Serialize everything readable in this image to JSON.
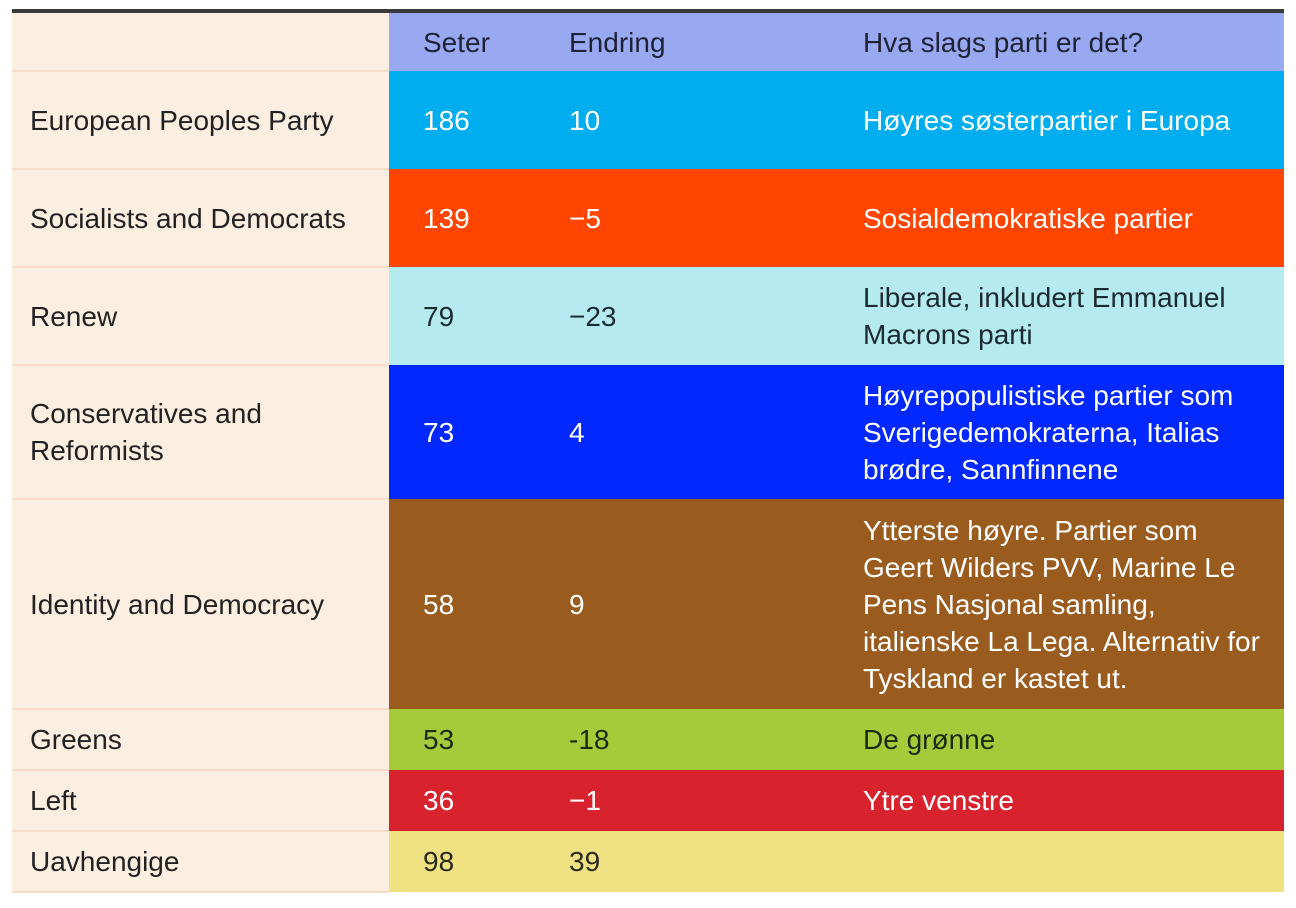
{
  "table": {
    "headers": [
      "",
      "Seter",
      "Endring",
      "Hva slags parti er det?"
    ],
    "rows": [
      {
        "group": "European Peoples Party",
        "seats": "186",
        "change": "10",
        "description": "Høyres søsterpartier i Europa",
        "bg": "#00aeef",
        "fg": "#ffffff",
        "h": 98
      },
      {
        "group": "Socialists and Democrats",
        "seats": "139",
        "change": "−5",
        "description": "Sosialdemokratiske partier",
        "bg": "#ff4500",
        "fg": "#ffffff",
        "h": 98
      },
      {
        "group": "Renew",
        "seats": "79",
        "change": "−23",
        "description": "Liberale, inkludert Emmanuel Macrons parti",
        "bg": "#b4eaf0",
        "fg": "#1c2b33",
        "h": 98
      },
      {
        "group": "Conservatives and Reformists",
        "seats": "73",
        "change": "4",
        "description": "Høyrepopulistiske partier som Sverigedemokraterna, Italias brødre, Sannfinnene",
        "bg": "#0028ff",
        "fg": "#ffffff",
        "h": 134
      },
      {
        "group": "Identity and Democracy",
        "seats": "58",
        "change": "9",
        "description": "Ytterste høyre. Partier som Geert Wilders PVV, Marine Le Pens Nasjonal samling, italienske La Lega. Alternativ for Tyskland er kastet ut.",
        "bg": "#9a5c1e",
        "fg": "#ffffff",
        "h": 210
      },
      {
        "group": "Greens",
        "seats": "53",
        "change": "-18",
        "description": "De grønne",
        "bg": "#a6cb3a",
        "fg": "#1c2b14",
        "h": 61
      },
      {
        "group": "Left",
        "seats": "36",
        "change": "−1",
        "description": "Ytre venstre",
        "bg": "#d8232f",
        "fg": "#ffffff",
        "h": 61
      },
      {
        "group": "Uavhengige",
        "seats": "98",
        "change": "39",
        "description": "",
        "bg": "#f0e282",
        "fg": "#2a2a1a",
        "h": 61
      }
    ]
  }
}
